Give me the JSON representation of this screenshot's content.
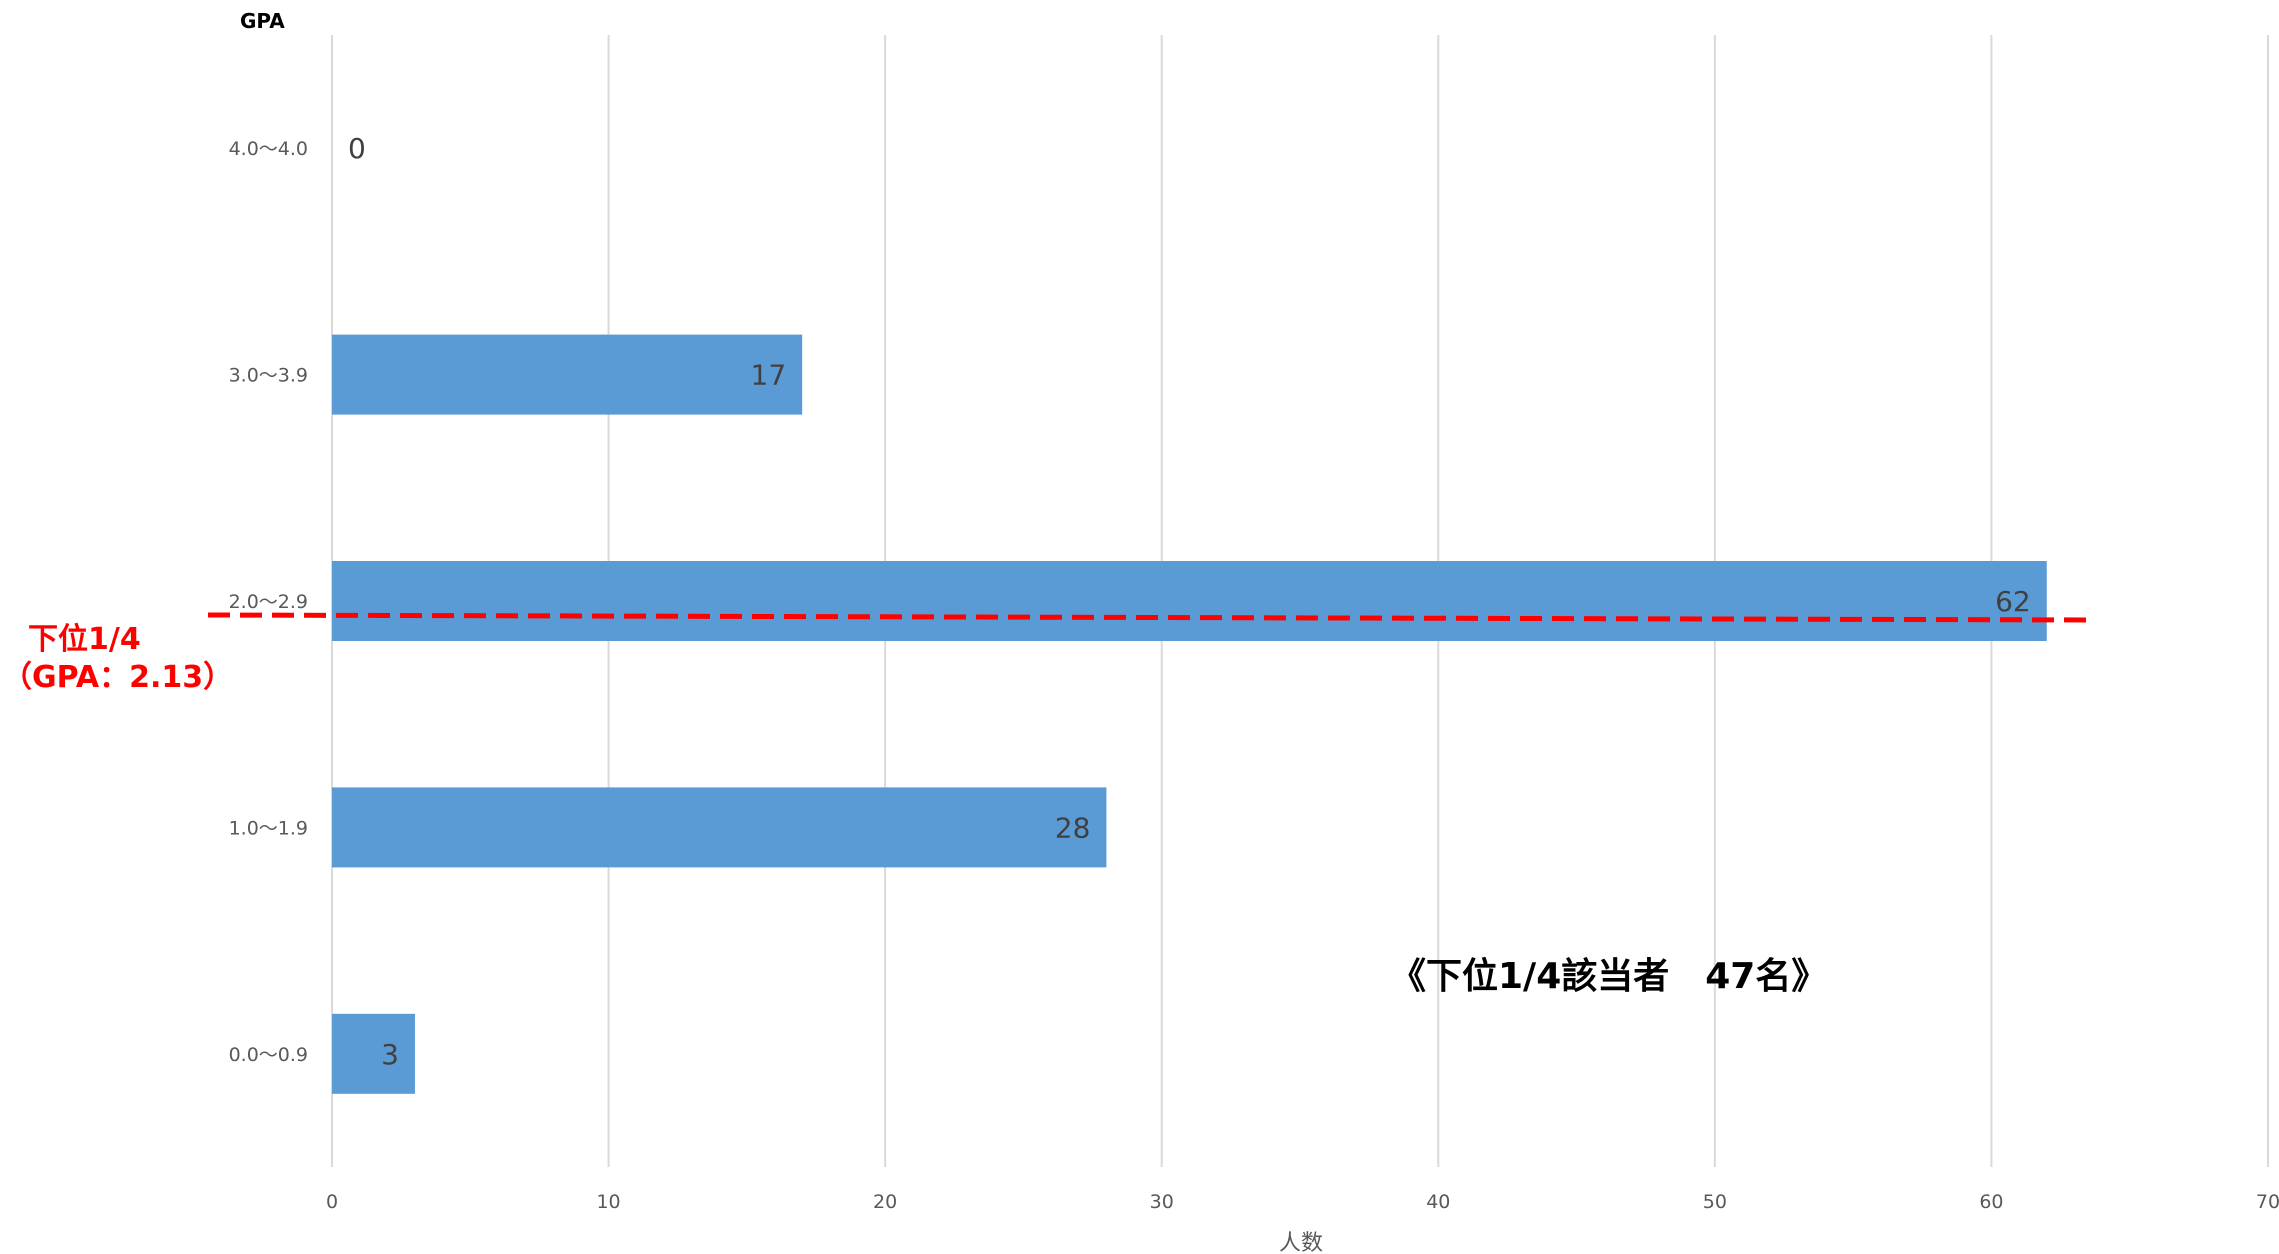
{
  "chart_data": {
    "type": "bar",
    "orientation": "horizontal",
    "categories": [
      "4.0～4.0",
      "3.0～3.9",
      "2.0～2.9",
      "1.0～1.9",
      "0.0～0.9"
    ],
    "values": [
      0,
      17,
      62,
      28,
      3
    ],
    "data_labels": [
      "0",
      "17",
      "62",
      "28",
      "3"
    ],
    "ylabel": "GPA",
    "xlabel": "人数",
    "xlim": [
      0,
      70
    ],
    "xticks": [
      0,
      10,
      20,
      30,
      40,
      50,
      60,
      70
    ],
    "xtick_labels": [
      "0",
      "10",
      "20",
      "30",
      "40",
      "50",
      "60",
      "70"
    ],
    "grid": "vertical",
    "bar_color": "#5b9bd5",
    "reference_line": {
      "label_line1": "下位1/4",
      "label_line2": "（GPA：2.13）",
      "color": "#ff0000",
      "style": "dashed"
    },
    "annotation": "《下位1/4該当者　47名》"
  }
}
